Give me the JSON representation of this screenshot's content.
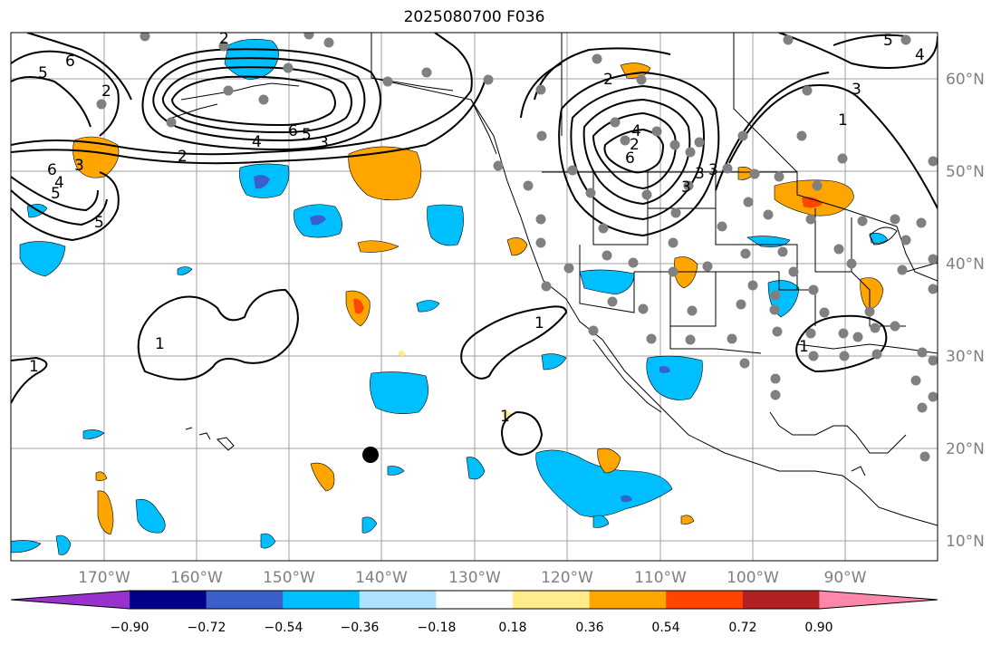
{
  "title": "2025080700 F036",
  "map": {
    "lat_labels": [
      "60°N",
      "50°N",
      "40°N",
      "30°N",
      "20°N",
      "10°N"
    ],
    "lon_labels": [
      "170°W",
      "160°W",
      "150°W",
      "140°W",
      "130°W",
      "120°W",
      "110°W",
      "100°W",
      "90°W"
    ],
    "grid_color": "#a0a0a0",
    "station_color": "#808080",
    "contour_labels": [
      "2",
      "6",
      "5",
      "2",
      "4",
      "6",
      "5",
      "3",
      "2",
      "6",
      "5",
      "4",
      "3",
      "5",
      "1",
      "1",
      "1",
      "1",
      "2",
      "4",
      "6",
      "3",
      "3",
      "3",
      "5",
      "4",
      "2",
      "1",
      "1",
      "3"
    ]
  },
  "colorbar": {
    "ticks": [
      "−0.90",
      "−0.72",
      "−0.54",
      "−0.36",
      "−0.18",
      "0.18",
      "0.36",
      "0.54",
      "0.72",
      "0.90"
    ],
    "colors": [
      "#9932cc",
      "#00008b",
      "#3a5fcd",
      "#00bfff",
      "#b0e2ff",
      "#ffffff",
      "#ffec8b",
      "#ffa500",
      "#ff4500",
      "#b22222",
      "#ff88aa"
    ]
  }
}
